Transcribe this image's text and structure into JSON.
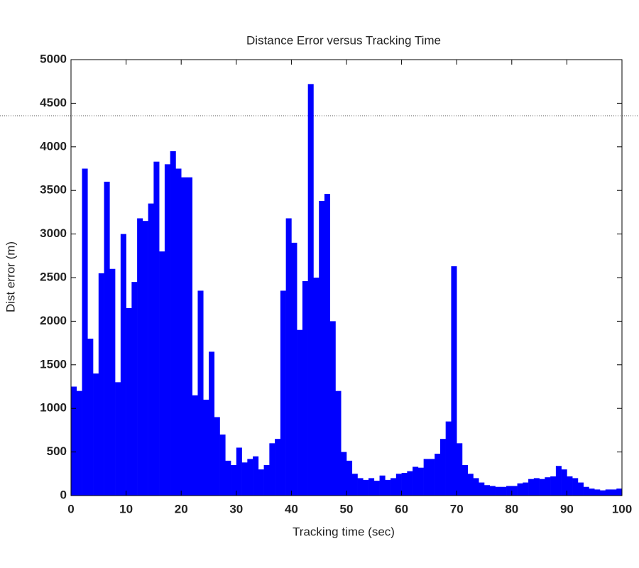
{
  "chart_data": {
    "type": "bar",
    "title": "Distance Error versus Tracking Time",
    "x_label": "Tracking time (sec)",
    "y_label": "Dist error (m)",
    "color": "#0000ff",
    "x": [
      0,
      1,
      2,
      3,
      4,
      5,
      6,
      7,
      8,
      9,
      10,
      11,
      12,
      13,
      14,
      15,
      16,
      17,
      18,
      19,
      20,
      21,
      22,
      23,
      24,
      25,
      26,
      27,
      28,
      29,
      30,
      31,
      32,
      33,
      34,
      35,
      36,
      37,
      38,
      39,
      40,
      41,
      42,
      43,
      44,
      45,
      46,
      47,
      48,
      49,
      50,
      51,
      52,
      53,
      54,
      55,
      56,
      57,
      58,
      59,
      60,
      61,
      62,
      63,
      64,
      65,
      66,
      67,
      68,
      69,
      70,
      71,
      72,
      73,
      74,
      75,
      76,
      77,
      78,
      79,
      80,
      81,
      82,
      83,
      84,
      85,
      86,
      87,
      88,
      89,
      90,
      91,
      92,
      93,
      94,
      95,
      96,
      97,
      98,
      99
    ],
    "values": [
      1250,
      1200,
      3750,
      1800,
      1400,
      2550,
      3600,
      2600,
      1300,
      3000,
      2150,
      2450,
      3180,
      3150,
      3350,
      3830,
      2800,
      3800,
      3950,
      3750,
      3650,
      3650,
      1150,
      2350,
      1100,
      1650,
      900,
      700,
      400,
      350,
      550,
      380,
      420,
      450,
      300,
      350,
      600,
      650,
      2350,
      3180,
      2900,
      1900,
      2460,
      4720,
      2500,
      3380,
      3460,
      2000,
      1200,
      500,
      400,
      250,
      200,
      180,
      200,
      170,
      230,
      180,
      200,
      250,
      260,
      280,
      330,
      320,
      420,
      420,
      480,
      650,
      850,
      2630,
      600,
      350,
      250,
      200,
      150,
      120,
      110,
      100,
      100,
      110,
      110,
      140,
      150,
      190,
      200,
      190,
      210,
      220,
      340,
      300,
      220,
      200,
      150,
      100,
      80,
      70,
      60,
      70,
      70,
      80
    ],
    "xlim": [
      0,
      100
    ],
    "xticks": [
      0,
      10,
      20,
      30,
      40,
      50,
      60,
      70,
      80,
      90,
      100
    ],
    "ylim": [
      0,
      5000
    ],
    "yticks": [
      0,
      500,
      1000,
      1500,
      2000,
      2500,
      3000,
      3500,
      4000,
      4500,
      5000
    ]
  }
}
